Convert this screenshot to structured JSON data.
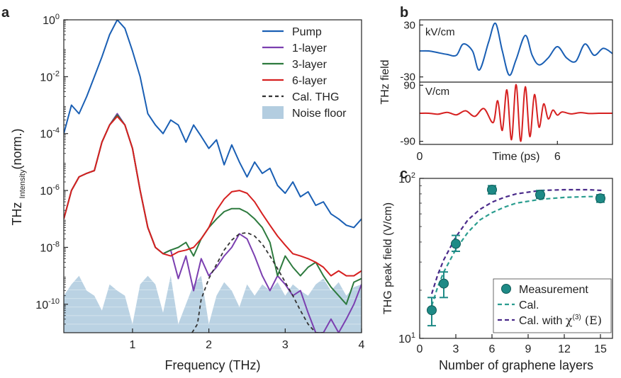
{
  "panels": {
    "a": "a",
    "b": "b",
    "c": "c"
  },
  "chart_data": [
    {
      "panel": "a",
      "type": "line",
      "xlabel": "Frequency (THz)",
      "ylabel_main": "THz ",
      "ylabel_sub": "Intensity",
      "ylabel_tail": "(norm.)",
      "xlim": [
        0.1,
        4.0
      ],
      "ylim": [
        1e-11,
        1.0
      ],
      "yscale": "log",
      "xticks": [
        1,
        2,
        3,
        4
      ],
      "xtick_labels": [
        "1",
        "2",
        "3",
        "4"
      ],
      "yticks": [
        {
          "v": 1e-10,
          "base": "10",
          "exp": "-10"
        },
        {
          "v": 1e-08,
          "base": "10",
          "exp": "-8"
        },
        {
          "v": 1e-06,
          "base": "10",
          "exp": "-6"
        },
        {
          "v": 0.0001,
          "base": "10",
          "exp": "-4"
        },
        {
          "v": 0.01,
          "base": "10",
          "exp": "-2"
        },
        {
          "v": 1,
          "base": "10",
          "exp": "0"
        }
      ],
      "legend_position": "top-right",
      "series": [
        {
          "name": "Pump",
          "color": "#1a5fb4",
          "style": "solid",
          "x": [
            0.1,
            0.2,
            0.3,
            0.4,
            0.5,
            0.6,
            0.7,
            0.8,
            0.9,
            1.0,
            1.1,
            1.2,
            1.3,
            1.4,
            1.5,
            1.6,
            1.7,
            1.8,
            1.9,
            2.0,
            2.1,
            2.2,
            2.3,
            2.4,
            2.5,
            2.6,
            2.7,
            2.8,
            2.9,
            3.0,
            3.1,
            3.2,
            3.3,
            3.4,
            3.5,
            3.6,
            3.7,
            3.8,
            3.9,
            4.0
          ],
          "y": [
            0.0001,
            0.001,
            0.0005,
            0.002,
            0.01,
            0.05,
            0.3,
            1.0,
            0.5,
            0.08,
            0.01,
            0.0005,
            0.0002,
            0.0001,
            0.0003,
            0.0002,
            5e-05,
            0.0002,
            8e-05,
            3e-05,
            6e-05,
            8e-06,
            4e-05,
            1e-05,
            3e-06,
            1e-05,
            4e-06,
            6e-06,
            1.5e-06,
            8e-07,
            2e-06,
            6e-07,
            9e-07,
            3e-07,
            4e-07,
            1.5e-07,
            1e-07,
            6e-08,
            5e-08,
            1e-07
          ]
        },
        {
          "name": "1-layer",
          "color": "#7b3fb0",
          "style": "solid",
          "x": [
            0.1,
            0.2,
            0.3,
            0.4,
            0.5,
            0.6,
            0.7,
            0.8,
            0.9,
            1.0,
            1.1,
            1.2,
            1.3,
            1.4,
            1.5,
            1.6,
            1.7,
            1.8,
            1.9,
            2.0,
            2.1,
            2.2,
            2.3,
            2.4,
            2.5,
            2.6,
            2.7,
            2.8,
            2.9,
            3.0,
            3.1,
            3.2,
            3.3,
            3.4,
            3.5,
            3.6,
            3.7,
            3.8,
            3.9,
            4.0
          ],
          "y": [
            1e-07,
            1e-06,
            3e-06,
            4e-06,
            5e-06,
            5e-05,
            0.0002,
            0.0005,
            0.0002,
            3e-05,
            1e-06,
            5e-08,
            1e-08,
            6e-09,
            8e-09,
            8e-10,
            5e-09,
            3e-10,
            4e-09,
            1e-09,
            2e-09,
            5e-09,
            1e-08,
            3e-08,
            2e-08,
            5e-09,
            1e-09,
            3e-10,
            1e-09,
            5e-10,
            2e-10,
            3e-10,
            5e-11,
            1e-11,
            1e-11,
            3e-11,
            1e-11,
            3e-11,
            1e-10,
            5e-10
          ]
        },
        {
          "name": "3-layer",
          "color": "#2d7a3e",
          "style": "solid",
          "x": [
            0.1,
            0.2,
            0.3,
            0.4,
            0.5,
            0.6,
            0.7,
            0.8,
            0.9,
            1.0,
            1.1,
            1.2,
            1.3,
            1.4,
            1.5,
            1.6,
            1.7,
            1.8,
            1.9,
            2.0,
            2.1,
            2.2,
            2.3,
            2.4,
            2.5,
            2.6,
            2.7,
            2.8,
            2.9,
            3.0,
            3.1,
            3.2,
            3.3,
            3.4,
            3.5,
            3.6,
            3.7,
            3.8,
            3.9,
            4.0
          ],
          "y": [
            1e-07,
            1e-06,
            3e-06,
            4e-06,
            5e-06,
            5e-05,
            0.0002,
            0.00045,
            0.0002,
            3e-05,
            1e-06,
            5e-08,
            1e-08,
            6e-09,
            8e-09,
            1e-08,
            1.5e-08,
            5e-09,
            2e-08,
            5e-08,
            1e-07,
            1.8e-07,
            2.3e-07,
            2.3e-07,
            1.7e-07,
            1e-07,
            5e-08,
            1.5e-08,
            1e-09,
            5e-09,
            2e-09,
            1e-09,
            2e-09,
            3e-09,
            1e-09,
            4e-10,
            2e-10,
            1e-10,
            6e-10,
            8e-10
          ]
        },
        {
          "name": "6-layer",
          "color": "#d62020",
          "style": "solid",
          "x": [
            0.1,
            0.2,
            0.3,
            0.4,
            0.5,
            0.6,
            0.7,
            0.8,
            0.9,
            1.0,
            1.1,
            1.2,
            1.3,
            1.4,
            1.5,
            1.6,
            1.7,
            1.8,
            1.9,
            2.0,
            2.1,
            2.2,
            2.3,
            2.4,
            2.5,
            2.6,
            2.7,
            2.8,
            2.9,
            3.0,
            3.1,
            3.2,
            3.3,
            3.4,
            3.5,
            3.6,
            3.7,
            3.8,
            3.9,
            4.0
          ],
          "y": [
            1e-07,
            1e-06,
            3e-06,
            4e-06,
            5e-06,
            5e-05,
            0.0002,
            0.0004,
            0.0002,
            3e-05,
            1e-06,
            5e-08,
            1e-08,
            6e-09,
            5e-09,
            7e-09,
            8e-09,
            1e-08,
            2e-08,
            5e-08,
            2e-07,
            5e-07,
            9e-07,
            1e-06,
            8e-07,
            4e-07,
            1.5e-07,
            6e-08,
            2.5e-08,
            1.2e-08,
            6e-09,
            5e-09,
            4e-09,
            3e-09,
            2e-09,
            1e-09,
            1.5e-09,
            1e-09,
            1e-09,
            1.5e-09
          ]
        },
        {
          "name": "Cal. THG",
          "color": "#333333",
          "style": "dashed",
          "x": [
            1.78,
            1.85,
            1.9,
            2.0,
            2.1,
            2.2,
            2.3,
            2.4,
            2.5,
            2.6,
            2.7,
            2.8,
            2.9,
            3.0,
            3.1,
            3.2,
            3.3,
            3.4,
            3.5
          ],
          "y": [
            1e-11,
            2e-11,
            1.5e-10,
            8e-10,
            2.5e-09,
            8e-09,
            1.8e-08,
            3e-08,
            3.3e-08,
            2.5e-08,
            1.3e-08,
            5e-09,
            1.8e-09,
            6e-10,
            2e-10,
            6e-11,
            2e-11,
            1e-11,
            1e-11
          ]
        }
      ],
      "noise_floor": {
        "name": "Noise floor",
        "color": "#b3cde0",
        "x": [
          0.1,
          0.2,
          0.3,
          0.4,
          0.5,
          0.6,
          0.7,
          0.8,
          0.9,
          1.0,
          1.1,
          1.2,
          1.3,
          1.4,
          1.5,
          1.6,
          1.7,
          1.8,
          1.9,
          2.0,
          2.1,
          2.2,
          2.3,
          2.4,
          2.5,
          2.6,
          2.7,
          2.8,
          2.9,
          3.0,
          3.1,
          3.2,
          3.3,
          3.4,
          3.5,
          3.6,
          3.7,
          3.8,
          3.9,
          4.0
        ],
        "y": [
          2e-10,
          5e-10,
          1e-09,
          3e-10,
          2e-10,
          6e-11,
          5e-10,
          3e-10,
          2e-10,
          2e-11,
          5e-10,
          1e-09,
          5e-10,
          5e-11,
          1e-09,
          2e-11,
          1e-10,
          5e-10,
          1e-09,
          2e-11,
          2e-10,
          6e-10,
          3e-10,
          8e-11,
          5e-10,
          2e-10,
          5e-10,
          3e-10,
          6e-10,
          2e-10,
          5e-10,
          3e-10,
          2e-10,
          5e-10,
          8e-10,
          3e-10,
          6e-10,
          2e-10,
          4e-10,
          5e-10
        ]
      }
    },
    {
      "panel": "b",
      "type": "line",
      "ylabel": "THz field",
      "xlabel": "Time (ps)",
      "xlim": [
        0,
        8.4
      ],
      "xticks": [
        0,
        6
      ],
      "xtick_labels": [
        "0",
        "6"
      ],
      "top": {
        "unit_label": "kV/cm",
        "ylim": [
          -36,
          36
        ],
        "yticks": [
          30,
          -30
        ],
        "ytick_labels": [
          "30",
          "-30"
        ],
        "color": "#1a5fb4",
        "series_name": "",
        "x": [
          0,
          0.4,
          0.8,
          1.2,
          1.6,
          1.9,
          2.3,
          2.6,
          3.0,
          3.3,
          3.6,
          3.9,
          4.2,
          4.6,
          4.9,
          5.2,
          5.6,
          6.0,
          6.4,
          6.8,
          7.2,
          7.6,
          8.0,
          8.4
        ],
        "y": [
          0,
          0,
          -2,
          -4,
          -5,
          8,
          0,
          -22,
          10,
          32,
          0,
          -28,
          -10,
          18,
          -5,
          -16,
          -8,
          5,
          -8,
          -12,
          8,
          -5,
          3,
          -3
        ]
      },
      "bottom": {
        "unit_label": "V/cm",
        "ylim": [
          -100,
          100
        ],
        "yticks": [
          90,
          -90
        ],
        "ytick_labels": [
          "90",
          "-90"
        ],
        "color": "#d62020",
        "series_name": "",
        "x": [
          0,
          0.4,
          0.8,
          1.2,
          1.6,
          2.0,
          2.4,
          2.8,
          3.2,
          3.4,
          3.6,
          3.8,
          4.0,
          4.2,
          4.4,
          4.6,
          4.8,
          5.0,
          5.2,
          5.4,
          5.6,
          5.8,
          6.0,
          6.2,
          6.6,
          7.0,
          7.4,
          7.8,
          8.4
        ],
        "y": [
          0,
          0,
          -3,
          3,
          -5,
          8,
          -10,
          15,
          -30,
          40,
          -55,
          75,
          -85,
          92,
          -90,
          85,
          -75,
          60,
          -45,
          30,
          -18,
          10,
          -6,
          4,
          -2,
          2,
          -1,
          0,
          0
        ]
      }
    },
    {
      "panel": "c",
      "type": "scatter",
      "xlabel": "Number of graphene layers",
      "ylabel": "THG peak field (V/cm)",
      "xlim": [
        0,
        16
      ],
      "ylim": [
        10,
        100
      ],
      "yscale": "log",
      "xticks": [
        0,
        3,
        6,
        9,
        12,
        15
      ],
      "xtick_labels": [
        "0",
        "3",
        "6",
        "9",
        "12",
        "15"
      ],
      "yticks": [
        {
          "v": 10,
          "base": "10",
          "exp": "1"
        },
        {
          "v": 100,
          "base": "10",
          "exp": "2"
        }
      ],
      "legend_position": "bottom-right",
      "measurement": {
        "name": "Measurement",
        "color": "#1e8a86",
        "x": [
          1,
          2,
          3,
          6,
          10,
          15
        ],
        "y": [
          15,
          22,
          39,
          85,
          79,
          75
        ],
        "err_low": [
          12,
          18,
          35,
          80,
          75,
          71
        ],
        "err_high": [
          18,
          26,
          44,
          90,
          84,
          79
        ]
      },
      "cal": {
        "name": "Cal.",
        "color": "#2a9d8f",
        "style": "dashed",
        "x": [
          1,
          1.5,
          2,
          3,
          4,
          5,
          6,
          7,
          8,
          10,
          12,
          14,
          15.2
        ],
        "y": [
          16,
          21,
          26,
          36,
          46,
          55,
          61,
          66,
          70,
          74,
          76,
          77,
          77
        ]
      },
      "cal_chi": {
        "name": "Cal. with ",
        "chi": "χ",
        "chi_sup": "(3)",
        "chi_arg": " (E)",
        "color": "#4a2a8a",
        "style": "dashed",
        "x": [
          1,
          1.5,
          2,
          3,
          4,
          5,
          6,
          7,
          8,
          10,
          12,
          14,
          15.2
        ],
        "y": [
          19,
          25,
          31,
          43,
          55,
          64,
          71,
          76,
          80,
          84,
          85,
          85,
          84
        ]
      }
    }
  ]
}
